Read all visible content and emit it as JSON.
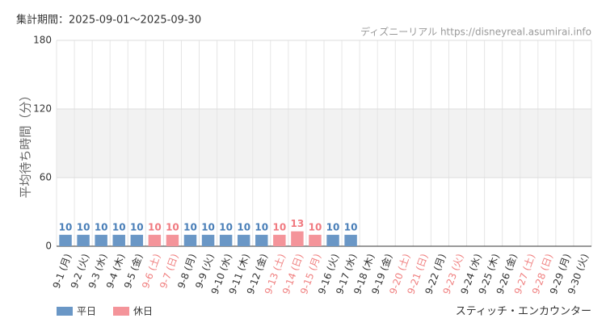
{
  "chart_data": {
    "type": "bar",
    "title": "集計期間：2025-09-01～2025-09-30",
    "source": "ディズニーリアル https://disneyreal.asumirai.info",
    "y_label": "平均待ち時間（分）",
    "footer": "スティッチ・エンカウンター",
    "categories": [
      "9-1 (月)",
      "9-2 (火)",
      "9-3 (水)",
      "9-4 (木)",
      "9-5 (金)",
      "9-6 (土)",
      "9-7 (日)",
      "9-8 (月)",
      "9-9 (火)",
      "9-10 (水)",
      "9-11 (木)",
      "9-12 (金)",
      "9-13 (土)",
      "9-14 (日)",
      "9-15 (月)",
      "9-16 (火)",
      "9-17 (水)",
      "9-18 (木)",
      "9-19 (金)",
      "9-20 (土)",
      "9-21 (日)",
      "9-22 (月)",
      "9-23 (火)",
      "9-24 (水)",
      "9-25 (木)",
      "9-26 (金)",
      "9-27 (土)",
      "9-28 (日)",
      "9-29 (月)",
      "9-30 (火)"
    ],
    "category_colors": [
      "#333",
      "#333",
      "#333",
      "#333",
      "#333",
      "#f08080",
      "#f08080",
      "#333",
      "#333",
      "#333",
      "#333",
      "#333",
      "#f08080",
      "#f08080",
      "#f08080",
      "#333",
      "#333",
      "#333",
      "#333",
      "#f08080",
      "#f08080",
      "#333",
      "#f08080",
      "#333",
      "#333",
      "#333",
      "#f08080",
      "#f08080",
      "#333",
      "#333"
    ],
    "series": [
      {
        "name": "平日",
        "color": "#6a97c6",
        "label_color": "#4a7fb8",
        "values": [
          10,
          10,
          10,
          10,
          10,
          null,
          null,
          10,
          10,
          10,
          10,
          10,
          null,
          null,
          null,
          10,
          10,
          null,
          null,
          null,
          null,
          null,
          null,
          null,
          null,
          null,
          null,
          null,
          null,
          null
        ]
      },
      {
        "name": "休日",
        "color": "#f4949a",
        "label_color": "#f07a80",
        "values": [
          null,
          null,
          null,
          null,
          null,
          10,
          10,
          null,
          null,
          null,
          null,
          null,
          10,
          13,
          10,
          null,
          null,
          null,
          null,
          null,
          null,
          null,
          null,
          null,
          null,
          null,
          null,
          null,
          null,
          null
        ]
      }
    ],
    "ylim": [
      0,
      180
    ],
    "yticks": [
      0,
      60,
      120,
      180
    ],
    "grid": true,
    "band_color": "#f2f2f2"
  }
}
